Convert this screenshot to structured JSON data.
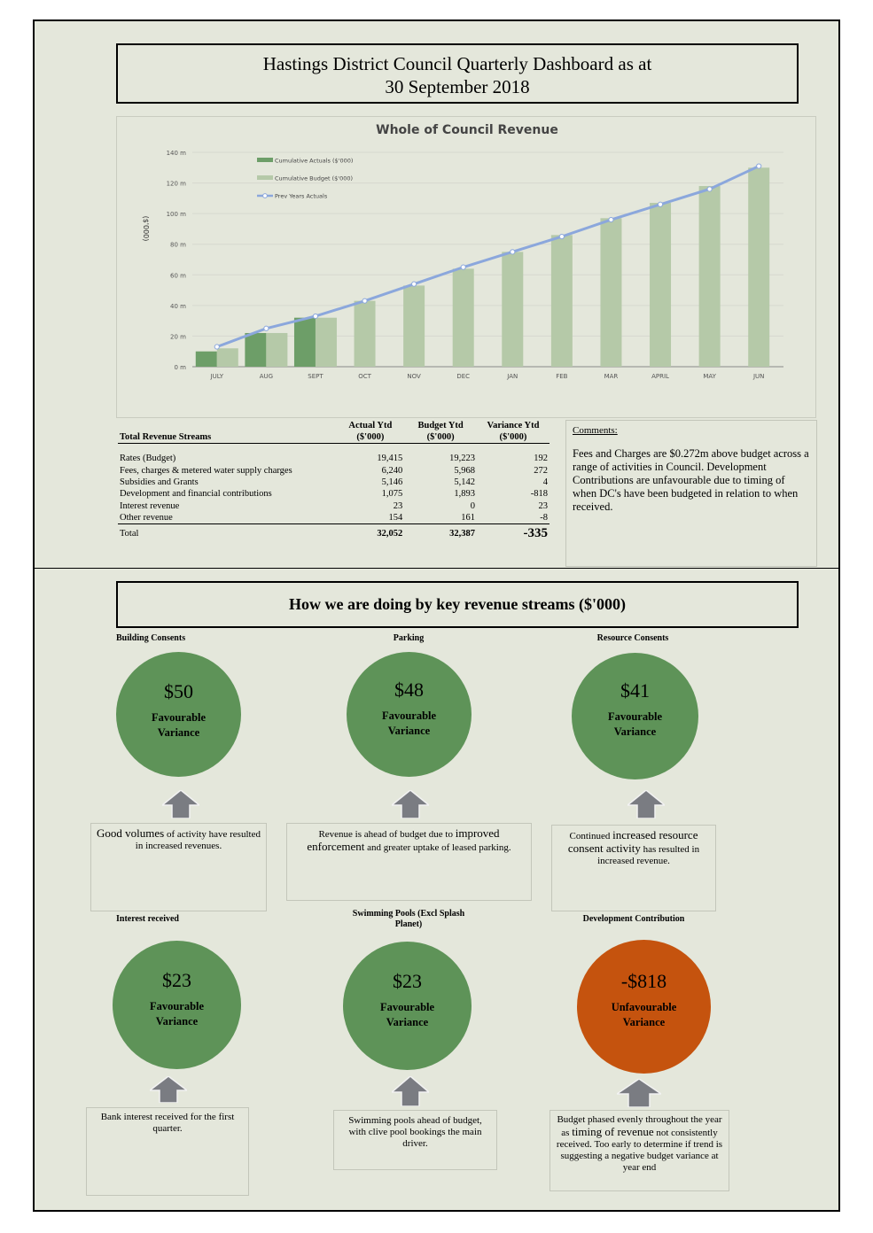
{
  "page_title": {
    "line1": "Hastings District Council Quarterly Dashboard as at",
    "line2": "30 September 2018"
  },
  "chart_data": {
    "type": "bar",
    "title": "Whole of Council Revenue",
    "ylabel": "($'000)",
    "xlabel": "",
    "categories": [
      "JULY",
      "AUG",
      "SEPT",
      "OCT",
      "NOV",
      "DEC",
      "JAN",
      "FEB",
      "MAR",
      "APRIL",
      "MAY",
      "JUN"
    ],
    "ylim": [
      0,
      140
    ],
    "yticks": [
      0,
      20,
      40,
      60,
      80,
      100,
      120,
      140
    ],
    "ytick_labels": [
      "0 m",
      "20 m",
      "40 m",
      "60 m",
      "80 m",
      "100 m",
      "120 m",
      "140 m"
    ],
    "grid": true,
    "legend_position": "top-left",
    "series": [
      {
        "name": "Cumulative Actuals ($'000)",
        "type": "bar",
        "color": "#6d9e68",
        "values": [
          10,
          22,
          32,
          null,
          null,
          null,
          null,
          null,
          null,
          null,
          null,
          null
        ]
      },
      {
        "name": "Cumulative Budget ($'000)",
        "type": "bar",
        "color": "#b5c9a8",
        "values": [
          12,
          22,
          32,
          43,
          53,
          64,
          75,
          86,
          97,
          107,
          118,
          130
        ]
      },
      {
        "name": "Prev Years Actuals",
        "type": "line",
        "color": "#8ba7dc",
        "values": [
          13,
          25,
          33,
          43,
          54,
          65,
          75,
          85,
          96,
          106,
          116,
          131
        ]
      }
    ]
  },
  "revenue_table": {
    "headers": {
      "stream": "Total Revenue Streams",
      "actual_l1": "Actual Ytd",
      "actual_l2": "($'000)",
      "budget_l1": "Budget Ytd",
      "budget_l2": "($'000)",
      "variance_l1": "Variance Ytd",
      "variance_l2": "($'000)"
    },
    "rows": [
      {
        "name": "Rates (Budget)",
        "actual": "19,415",
        "budget": "19,223",
        "variance": "192"
      },
      {
        "name": "Fees, charges & metered water supply charges",
        "actual": "6,240",
        "budget": "5,968",
        "variance": "272"
      },
      {
        "name": "Subsidies and Grants",
        "actual": "5,146",
        "budget": "5,142",
        "variance": "4"
      },
      {
        "name": "Development and financial contributions",
        "actual": "1,075",
        "budget": "1,893",
        "variance": "-818"
      },
      {
        "name": "Interest revenue",
        "actual": "23",
        "budget": "0",
        "variance": "23"
      },
      {
        "name": "Other revenue",
        "actual": "154",
        "budget": "161",
        "variance": "-8"
      }
    ],
    "total": {
      "name": "Total",
      "actual": "32,052",
      "budget": "32,387",
      "variance": "-335"
    }
  },
  "comments": {
    "heading": "Comments:",
    "text": "Fees and Charges are $0.272m above budget across a range of activities in Council. Development Contributions are unfavourable due to timing of when DC's have been budgeted in relation to when received."
  },
  "streams_heading": "How we are doing by key revenue streams  ($'000)",
  "colors": {
    "favourable": "#5e9358",
    "unfavourable": "#c5530e",
    "arrow": "#7a7c82"
  },
  "streams": [
    {
      "label": "Building Consents",
      "amount": "$50",
      "status_l1": "Favourable",
      "status_l2": "Variance",
      "note_a": "Good volumes",
      "note_b": " of activity have resulted in increased revenues.",
      "note_c": ""
    },
    {
      "label": "Parking",
      "amount": "$48",
      "status_l1": "Favourable",
      "status_l2": "Variance",
      "note_a": "Revenue is ahead of budget due to ",
      "note_b": "improved enforcement",
      "note_c": " and greater uptake of leased parking."
    },
    {
      "label": "Resource Consents",
      "amount": "$41",
      "status_l1": "Favourable",
      "status_l2": "Variance",
      "note_a": "Continued ",
      "note_b": "increased resource consent activity",
      "note_c": " has resulted in increased revenue."
    },
    {
      "label": "Interest received",
      "amount": "$23",
      "status_l1": "Favourable",
      "status_l2": "Variance",
      "note_a": "Bank interest received for the first quarter.",
      "note_b": "",
      "note_c": ""
    },
    {
      "label": "Swimming Pools (Excl Splash Planet)",
      "amount": "$23",
      "status_l1": "Favourable",
      "status_l2": "Variance",
      "note_a": "Swimming pools ahead of budget, with clive pool bookings the main driver.",
      "note_b": "",
      "note_c": ""
    },
    {
      "label": "Development Contribution",
      "amount": "-$818",
      "status_l1": "Unfavourable",
      "status_l2": "Variance",
      "note_a": "Budget phased evenly throughout the year as ",
      "note_b": "timing  of revenue",
      "note_c": " not consistently received.  Too early to determine if trend is suggesting a negative budget variance at year end"
    }
  ]
}
